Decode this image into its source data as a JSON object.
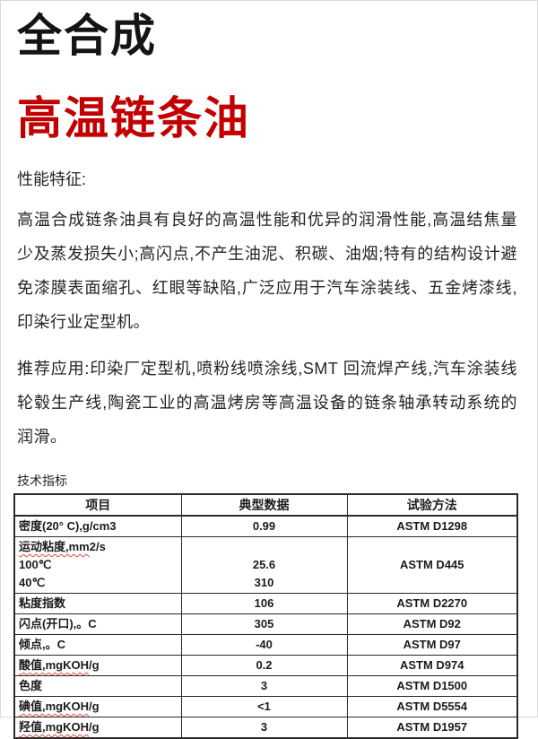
{
  "doc": {
    "title_line1": "全合成",
    "title_line2": "高温链条油",
    "title_color": "#c20000",
    "features_heading": "性能特征:",
    "features_paragraph": "高温合成链条油具有良好的高温性能和优异的润滑性能,高温结焦量少及蒸发损失小;高闪点,不产生油泥、积碳、油烟;特有的结构设计避免漆膜表面缩孔、红眼等缺陷,广泛应用于汽车涂装线、五金烤漆线,印染行业定型机。",
    "applications_paragraph": "推荐应用:印染厂定型机,喷粉线喷涂线,SMT 回流焊产线,汽车涂装线轮毂生产线,陶瓷工业的高温烤房等高温设备的链条轴承转动系统的润滑。",
    "table_label": "技术指标"
  },
  "table": {
    "headers": [
      "项目",
      "典型数据",
      "试验方法"
    ],
    "rows": [
      {
        "item_lines": [
          {
            "wavy": "",
            "text": "密度(20° C),g/cm3"
          }
        ],
        "value_lines": [
          "0.99"
        ],
        "method": "ASTM D1298"
      },
      {
        "item_lines": [
          {
            "wavy": "运动粘度,mm",
            "text": "2/s"
          },
          {
            "wavy": "",
            "text": "100℃"
          },
          {
            "wavy": "",
            "text": "40℃"
          }
        ],
        "value_lines": [
          "",
          "25.6",
          "310"
        ],
        "method": "ASTM D445"
      },
      {
        "item_lines": [
          {
            "wavy": "",
            "text": "粘度指数"
          }
        ],
        "value_lines": [
          "106"
        ],
        "method": "ASTM D2270"
      },
      {
        "item_lines": [
          {
            "wavy": "",
            "text": "闪点(开口),。C"
          }
        ],
        "value_lines": [
          "305"
        ],
        "method": "ASTM D92"
      },
      {
        "item_lines": [
          {
            "wavy": "",
            "text": "倾点,。C"
          }
        ],
        "value_lines": [
          "-40"
        ],
        "method": "ASTM D97"
      },
      {
        "item_lines": [
          {
            "wavy": "酸值,mgKOH",
            "text": "/g"
          }
        ],
        "value_lines": [
          "0.2"
        ],
        "method": "ASTM D974"
      },
      {
        "item_lines": [
          {
            "wavy": "",
            "text": "色度"
          }
        ],
        "value_lines": [
          "3"
        ],
        "method": "ASTM D1500"
      },
      {
        "item_lines": [
          {
            "wavy": "碘值,mgKOH",
            "text": "/g"
          }
        ],
        "value_lines": [
          "<1"
        ],
        "method": "ASTM D5554"
      },
      {
        "item_lines": [
          {
            "wavy": "羟值,mgKOH",
            "text": "/g"
          }
        ],
        "value_lines": [
          "3"
        ],
        "method": "ASTM D1957"
      }
    ]
  }
}
